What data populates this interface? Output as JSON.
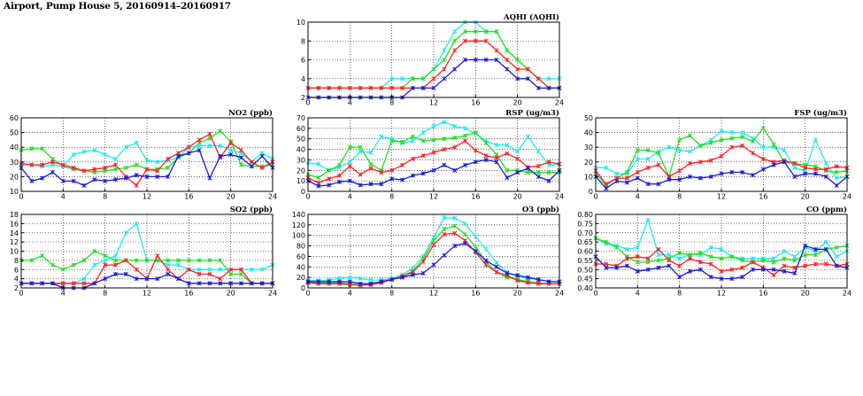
{
  "page_title": "Airport, Pump House 5, 20160914–20160917",
  "colors": {
    "red": "#ff2020",
    "green": "#22dd22",
    "blue": "#1a1ad8",
    "cyan": "#22e8f0"
  },
  "chart_data": [
    {
      "id": "aqhi",
      "type": "line",
      "title": "AQHI (AQHI)",
      "xlim": [
        0,
        24
      ],
      "xticks": [
        0,
        4,
        8,
        12,
        16,
        20,
        24
      ],
      "ylim": [
        2,
        10
      ],
      "yticks": [
        2,
        4,
        6,
        8,
        10
      ],
      "series": [
        {
          "color": "cyan",
          "values": [
            3,
            3,
            3,
            3,
            3,
            3,
            3,
            3,
            4,
            4,
            4,
            4,
            5,
            7,
            9,
            10,
            10,
            9,
            9,
            7,
            6,
            5,
            4,
            4,
            4
          ]
        },
        {
          "color": "green",
          "values": [
            3,
            3,
            3,
            3,
            3,
            3,
            3,
            3,
            3,
            3,
            4,
            4,
            5,
            6,
            8,
            9,
            9,
            9,
            9,
            7,
            6,
            5,
            4,
            3,
            3
          ]
        },
        {
          "color": "red",
          "values": [
            3,
            3,
            3,
            3,
            3,
            3,
            3,
            3,
            3,
            3,
            3,
            3,
            4,
            5,
            7,
            8,
            8,
            8,
            7,
            6,
            5,
            5,
            4,
            3,
            3
          ]
        },
        {
          "color": "blue",
          "values": [
            2,
            2,
            2,
            2,
            2,
            2,
            2,
            2,
            2,
            2,
            3,
            3,
            3,
            4,
            5,
            6,
            6,
            6,
            6,
            5,
            4,
            4,
            3,
            3,
            3
          ]
        }
      ]
    },
    {
      "id": "no2",
      "type": "line",
      "title": "NO2 (ppb)",
      "xlim": [
        0,
        24
      ],
      "xticks": [
        0,
        4,
        8,
        12,
        16,
        20,
        24
      ],
      "ylim": [
        10,
        60
      ],
      "yticks": [
        10,
        20,
        30,
        40,
        50,
        60
      ],
      "series": [
        {
          "color": "green",
          "values": [
            38,
            39,
            39,
            32,
            27,
            25,
            24,
            23,
            24,
            25,
            26,
            28,
            25,
            25,
            26,
            33,
            36,
            43,
            46,
            51,
            44,
            28,
            27,
            27,
            28
          ]
        },
        {
          "color": "cyan",
          "values": [
            28,
            28,
            27,
            28,
            27,
            35,
            37,
            38,
            35,
            32,
            40,
            43,
            31,
            30,
            31,
            33,
            40,
            41,
            41,
            41,
            38,
            36,
            30,
            36,
            32
          ]
        },
        {
          "color": "red",
          "values": [
            29,
            28,
            28,
            30,
            28,
            26,
            24,
            25,
            26,
            28,
            20,
            14,
            25,
            24,
            32,
            36,
            40,
            45,
            49,
            33,
            43,
            38,
            30,
            26,
            30
          ]
        },
        {
          "color": "blue",
          "values": [
            26,
            17,
            19,
            23,
            17,
            17,
            14,
            18,
            17,
            18,
            19,
            21,
            20,
            20,
            20,
            34,
            36,
            38,
            19,
            34,
            35,
            33,
            27,
            34,
            26
          ]
        }
      ]
    },
    {
      "id": "rsp",
      "type": "line",
      "title": "RSP (ug/m3)",
      "xlim": [
        0,
        24
      ],
      "xticks": [
        0,
        4,
        8,
        12,
        16,
        20,
        24
      ],
      "ylim": [
        0,
        70
      ],
      "yticks": [
        0,
        10,
        20,
        30,
        40,
        50,
        60,
        70
      ],
      "series": [
        {
          "color": "cyan",
          "values": [
            27,
            26,
            20,
            23,
            28,
            38,
            37,
            52,
            50,
            46,
            48,
            56,
            62,
            66,
            62,
            60,
            55,
            48,
            44,
            44,
            38,
            52,
            38,
            25,
            26
          ]
        },
        {
          "color": "green",
          "values": [
            16,
            13,
            20,
            25,
            42,
            42,
            26,
            20,
            48,
            47,
            52,
            48,
            49,
            50,
            51,
            53,
            56,
            46,
            35,
            20,
            20,
            18,
            18,
            18,
            18
          ]
        },
        {
          "color": "red",
          "values": [
            13,
            8,
            12,
            15,
            24,
            16,
            22,
            18,
            20,
            25,
            31,
            34,
            37,
            40,
            42,
            48,
            39,
            34,
            32,
            36,
            31,
            23,
            24,
            28,
            26
          ]
        },
        {
          "color": "blue",
          "values": [
            10,
            5,
            6,
            9,
            10,
            6,
            7,
            7,
            12,
            11,
            15,
            17,
            20,
            25,
            20,
            25,
            28,
            30,
            28,
            13,
            18,
            22,
            14,
            10,
            20
          ]
        }
      ]
    },
    {
      "id": "fsp",
      "type": "line",
      "title": "FSP (ug/m3)",
      "xlim": [
        0,
        24
      ],
      "xticks": [
        0,
        4,
        8,
        12,
        16,
        20,
        24
      ],
      "ylim": [
        0,
        50
      ],
      "yticks": [
        0,
        10,
        20,
        30,
        40,
        50
      ],
      "series": [
        {
          "color": "cyan",
          "values": [
            16,
            16,
            12,
            12,
            22,
            22,
            27,
            30,
            28,
            27,
            31,
            35,
            41,
            40,
            40,
            36,
            30,
            30,
            28,
            16,
            14,
            35,
            19,
            9,
            10
          ]
        },
        {
          "color": "green",
          "values": [
            12,
            4,
            9,
            13,
            28,
            28,
            26,
            10,
            35,
            38,
            31,
            33,
            35,
            36,
            37,
            34,
            43,
            32,
            20,
            19,
            18,
            17,
            14,
            13,
            14
          ]
        },
        {
          "color": "red",
          "values": [
            14,
            5,
            9,
            9,
            13,
            16,
            18,
            10,
            14,
            19,
            20,
            21,
            24,
            30,
            31,
            26,
            22,
            20,
            21,
            19,
            16,
            15,
            15,
            17,
            16
          ]
        },
        {
          "color": "blue",
          "values": [
            10,
            2,
            7,
            6,
            9,
            5,
            5,
            8,
            8,
            10,
            9,
            10,
            12,
            13,
            13,
            11,
            15,
            18,
            20,
            10,
            12,
            12,
            10,
            4,
            10
          ]
        }
      ]
    },
    {
      "id": "so2",
      "type": "line",
      "title": "SO2 (ppb)",
      "xlim": [
        0,
        24
      ],
      "xticks": [
        0,
        4,
        8,
        12,
        16,
        20,
        24
      ],
      "ylim": [
        2,
        18
      ],
      "yticks": [
        2,
        4,
        6,
        8,
        10,
        12,
        14,
        16,
        18
      ],
      "series": [
        {
          "color": "cyan",
          "values": [
            3,
            3,
            3,
            3,
            3,
            3,
            4,
            7,
            8,
            9,
            14,
            16,
            8,
            8,
            7,
            7,
            6,
            6,
            6,
            6,
            6,
            6,
            6,
            6,
            7
          ]
        },
        {
          "color": "green",
          "values": [
            8,
            8,
            9,
            7,
            6,
            7,
            8,
            10,
            9,
            8,
            8,
            8,
            8,
            8,
            8,
            8,
            8,
            8,
            8,
            8,
            5,
            5,
            3,
            3,
            3
          ]
        },
        {
          "color": "red",
          "values": [
            3,
            3,
            3,
            3,
            3,
            3,
            3,
            3,
            7,
            7,
            8,
            6,
            4,
            9,
            6,
            4,
            6,
            5,
            5,
            4,
            6,
            6,
            3,
            3,
            3
          ]
        },
        {
          "color": "blue",
          "values": [
            3,
            3,
            3,
            3,
            2,
            2,
            2,
            3,
            4,
            5,
            5,
            4,
            4,
            4,
            5,
            4,
            3,
            3,
            3,
            3,
            3,
            3,
            3,
            3,
            3
          ]
        }
      ]
    },
    {
      "id": "o3",
      "type": "line",
      "title": "O3 (ppb)",
      "xlim": [
        0,
        24
      ],
      "xticks": [
        0,
        4,
        8,
        12,
        16,
        20,
        24
      ],
      "ylim": [
        0,
        140
      ],
      "yticks": [
        0,
        20,
        40,
        60,
        80,
        100,
        120,
        140
      ],
      "series": [
        {
          "color": "cyan",
          "values": [
            14,
            14,
            15,
            18,
            20,
            18,
            15,
            15,
            18,
            25,
            38,
            60,
            96,
            134,
            133,
            122,
            98,
            74,
            48,
            30,
            22,
            18,
            16,
            12,
            12
          ]
        },
        {
          "color": "green",
          "values": [
            10,
            10,
            10,
            10,
            8,
            6,
            8,
            12,
            16,
            22,
            32,
            55,
            90,
            112,
            118,
            102,
            78,
            50,
            30,
            20,
            16,
            12,
            10,
            8,
            8
          ]
        },
        {
          "color": "red",
          "values": [
            10,
            8,
            8,
            8,
            6,
            5,
            6,
            10,
            16,
            22,
            30,
            50,
            82,
            102,
            104,
            90,
            68,
            44,
            30,
            24,
            14,
            10,
            8,
            8,
            8
          ]
        },
        {
          "color": "blue",
          "values": [
            12,
            12,
            12,
            12,
            12,
            8,
            8,
            12,
            16,
            20,
            25,
            28,
            44,
            62,
            80,
            85,
            70,
            52,
            40,
            28,
            24,
            20,
            16,
            12,
            12
          ]
        }
      ]
    },
    {
      "id": "co",
      "type": "line",
      "title": "CO (ppm)",
      "xlim": [
        0,
        24
      ],
      "xticks": [
        0,
        4,
        8,
        12,
        16,
        20,
        24
      ],
      "ylim": [
        0.4,
        0.8
      ],
      "yticks": [
        "0.40",
        "0.45",
        "0.50",
        "0.55",
        "0.60",
        "0.65",
        "0.70",
        "0.75",
        "0.80"
      ],
      "series": [
        {
          "color": "cyan",
          "values": [
            0.67,
            0.64,
            0.63,
            0.61,
            0.62,
            0.77,
            0.58,
            0.58,
            0.56,
            0.58,
            0.58,
            0.62,
            0.61,
            0.57,
            0.56,
            0.56,
            0.56,
            0.56,
            0.6,
            0.57,
            0.62,
            0.6,
            0.65,
            0.57,
            0.6
          ]
        },
        {
          "color": "green",
          "values": [
            0.67,
            0.65,
            0.62,
            0.57,
            0.54,
            0.54,
            0.55,
            0.56,
            0.59,
            0.58,
            0.59,
            0.57,
            0.56,
            0.57,
            0.55,
            0.54,
            0.55,
            0.54,
            0.56,
            0.55,
            0.58,
            0.58,
            0.61,
            0.62,
            0.63
          ]
        },
        {
          "color": "red",
          "values": [
            0.53,
            0.53,
            0.52,
            0.56,
            0.57,
            0.56,
            0.61,
            0.55,
            0.52,
            0.56,
            0.54,
            0.53,
            0.49,
            0.5,
            0.51,
            0.54,
            0.51,
            0.47,
            0.52,
            0.51,
            0.52,
            0.53,
            0.53,
            0.52,
            0.53
          ]
        },
        {
          "color": "blue",
          "values": [
            0.57,
            0.51,
            0.51,
            0.52,
            0.49,
            0.5,
            0.51,
            0.52,
            0.46,
            0.49,
            0.5,
            0.46,
            0.45,
            0.45,
            0.46,
            0.5,
            0.5,
            0.5,
            0.49,
            0.48,
            0.63,
            0.61,
            0.61,
            0.52,
            0.51
          ]
        }
      ]
    }
  ]
}
